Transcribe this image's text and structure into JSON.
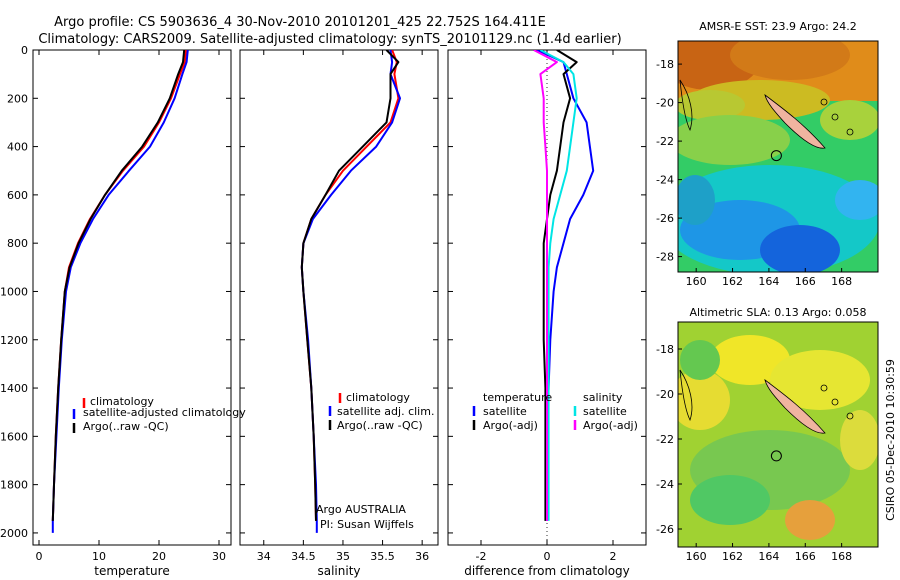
{
  "header": {
    "title_line1": "Argo profile: CS 5903636_4 30-Nov-2010 20101201_425 22.752S 164.411E",
    "title_line2": "Climatology: CARS2009. Satellite-adjusted climatology: synTS_20101129.nc (1.4d earlier)"
  },
  "footer": {
    "stamp": "CSIRO 05-Dec-2010 10:30:59",
    "argo_label": "Argo AUSTRALIA",
    "pi_label": "PI: Susan Wijffels"
  },
  "colors": {
    "climatology": "#ff0000",
    "satellite": "#0000ff",
    "argo": "#000000",
    "sal_satellite": "#00e5e5",
    "sal_argo": "#ff00ff"
  },
  "chart_data": [
    {
      "type": "line",
      "panel": "temperature",
      "xlabel": "temperature",
      "ylabel": "",
      "xlim": [
        -1,
        32
      ],
      "ylim": [
        2050,
        0
      ],
      "xticks": [
        0,
        10,
        20,
        30
      ],
      "yticks": [
        0,
        200,
        400,
        600,
        800,
        1000,
        1200,
        1400,
        1600,
        1800,
        2000
      ],
      "series": [
        {
          "name": "climatology",
          "color": "#ff0000",
          "x": [
            24.5,
            24.3,
            23.5,
            22.0,
            20.0,
            17.5,
            14.0,
            11.0,
            8.5,
            6.5,
            5.0,
            4.3,
            3.7,
            3.2,
            2.8,
            2.5,
            2.3
          ],
          "y": [
            0,
            50,
            100,
            200,
            300,
            400,
            500,
            600,
            700,
            800,
            900,
            1000,
            1200,
            1400,
            1600,
            1800,
            1950
          ]
        },
        {
          "name": "satellite-adjusted climatology",
          "color": "#0000ff",
          "x": [
            24.8,
            24.6,
            23.9,
            22.6,
            20.8,
            18.5,
            15.0,
            11.6,
            9.0,
            6.9,
            5.3,
            4.5,
            3.8,
            3.3,
            2.9,
            2.5,
            2.3,
            2.3
          ],
          "y": [
            0,
            50,
            100,
            200,
            300,
            400,
            500,
            600,
            700,
            800,
            900,
            1000,
            1200,
            1400,
            1600,
            1800,
            1950,
            2000
          ]
        },
        {
          "name": "Argo(..raw -QC)",
          "color": "#000000",
          "x": [
            24.2,
            24.0,
            23.2,
            21.8,
            19.8,
            17.2,
            13.8,
            11.0,
            8.6,
            6.6,
            5.1,
            4.3,
            3.7,
            3.2,
            2.8,
            2.5,
            2.3
          ],
          "y": [
            0,
            50,
            100,
            200,
            300,
            400,
            500,
            600,
            700,
            800,
            900,
            1000,
            1200,
            1400,
            1600,
            1800,
            1950
          ]
        }
      ],
      "legend": [
        "climatology",
        "satellite-adjusted climatology",
        "Argo(..raw -QC)"
      ],
      "legend_position": "center-right"
    },
    {
      "type": "line",
      "panel": "salinity",
      "xlabel": "salinity",
      "ylabel": "",
      "xlim": [
        33.7,
        36.2
      ],
      "ylim": [
        2050,
        0
      ],
      "xticks": [
        34,
        34.5,
        35,
        35.5,
        36
      ],
      "yticks": [
        0,
        200,
        400,
        600,
        800,
        1000,
        1200,
        1400,
        1600,
        1800,
        2000
      ],
      "series": [
        {
          "name": "climatology",
          "color": "#ff0000",
          "x": [
            35.62,
            35.68,
            35.65,
            35.7,
            35.6,
            35.3,
            35.0,
            34.78,
            34.6,
            34.5,
            34.48,
            34.5,
            34.55,
            34.6,
            34.63,
            34.65,
            34.66
          ],
          "y": [
            0,
            50,
            100,
            200,
            300,
            400,
            500,
            600,
            700,
            800,
            900,
            1000,
            1200,
            1400,
            1600,
            1800,
            1950
          ]
        },
        {
          "name": "satellite adj. clim.",
          "color": "#0000ff",
          "x": [
            35.6,
            35.62,
            35.6,
            35.72,
            35.62,
            35.42,
            35.1,
            34.85,
            34.62,
            34.5,
            34.48,
            34.5,
            34.56,
            34.6,
            34.63,
            34.66,
            34.67,
            34.67
          ],
          "y": [
            0,
            50,
            100,
            200,
            300,
            400,
            500,
            600,
            700,
            800,
            900,
            1000,
            1200,
            1400,
            1600,
            1800,
            1950,
            2000
          ]
        },
        {
          "name": "Argo(..raw -QC)",
          "color": "#000000",
          "x": [
            35.55,
            35.7,
            35.6,
            35.6,
            35.55,
            35.25,
            34.95,
            34.78,
            34.6,
            34.5,
            34.48,
            34.5,
            34.55,
            34.6,
            34.63,
            34.65,
            34.66
          ],
          "y": [
            0,
            50,
            100,
            200,
            300,
            400,
            500,
            600,
            700,
            800,
            900,
            1000,
            1200,
            1400,
            1600,
            1800,
            1950
          ]
        }
      ],
      "legend": [
        "climatology",
        "satellite adj. clim.",
        "Argo(..raw -QC)"
      ],
      "legend_position": "center-right"
    },
    {
      "type": "line",
      "panel": "difference",
      "xlabel": "difference from climatology",
      "ylabel": "",
      "xlim": [
        -3,
        3
      ],
      "ylim": [
        2050,
        0
      ],
      "xticks": [
        -2,
        0,
        2
      ],
      "yticks": [
        0,
        200,
        400,
        600,
        800,
        1000,
        1200,
        1400,
        1600,
        1800,
        2000
      ],
      "series": [
        {
          "name": "temperature satellite",
          "color": "#0000ff",
          "x": [
            -0.3,
            0.5,
            0.6,
            0.8,
            1.2,
            1.3,
            1.4,
            1.1,
            0.7,
            0.5,
            0.3,
            0.2,
            0.1,
            0.05,
            0.0,
            0.0,
            0.0
          ],
          "y": [
            0,
            50,
            100,
            200,
            300,
            400,
            500,
            600,
            700,
            800,
            900,
            1000,
            1200,
            1400,
            1600,
            1800,
            1950
          ]
        },
        {
          "name": "temperature Argo(-adj)",
          "color": "#000000",
          "x": [
            0.3,
            0.9,
            0.5,
            0.7,
            0.5,
            0.4,
            0.3,
            0.1,
            0.0,
            -0.1,
            -0.1,
            -0.1,
            -0.1,
            -0.05,
            -0.05,
            -0.05,
            -0.05
          ],
          "y": [
            0,
            50,
            100,
            200,
            300,
            400,
            500,
            600,
            700,
            800,
            900,
            1000,
            1200,
            1400,
            1600,
            1800,
            1950
          ]
        },
        {
          "name": "salinity satellite",
          "color": "#00e5e5",
          "x": [
            -0.2,
            0.5,
            0.8,
            0.9,
            0.8,
            0.7,
            0.6,
            0.4,
            0.2,
            0.1,
            0.05,
            0.05,
            0.05,
            0.05,
            0.05,
            0.05,
            0.05
          ],
          "y": [
            0,
            50,
            100,
            200,
            300,
            400,
            500,
            600,
            700,
            800,
            900,
            1000,
            1200,
            1400,
            1600,
            1800,
            1950
          ]
        },
        {
          "name": "salinity Argo(-adj)",
          "color": "#ff00ff",
          "x": [
            -0.4,
            0.3,
            -0.2,
            -0.1,
            -0.1,
            -0.05,
            0.0,
            0.0,
            0.0,
            0.0,
            0.0,
            0.0,
            0.0,
            0.0,
            0.0,
            0.0,
            0.0
          ],
          "y": [
            0,
            50,
            100,
            200,
            300,
            400,
            500,
            600,
            700,
            800,
            900,
            1000,
            1200,
            1400,
            1600,
            1800,
            1950
          ]
        }
      ],
      "legend_temperature_title": "temperature",
      "legend_salinity_title": "salinity",
      "legend": [
        "satellite",
        "Argo(-adj)",
        "satellite",
        "Argo(-adj)"
      ],
      "legend_position": "center-right"
    },
    {
      "type": "heatmap",
      "panel": "sst_map",
      "title": "AMSR-E SST: 23.9 Argo: 24.2",
      "xlim": [
        159,
        170
      ],
      "ylim": [
        -28.8,
        -16.8
      ],
      "xticks": [
        160,
        162,
        164,
        166,
        168
      ],
      "yticks": [
        -18,
        -20,
        -22,
        -24,
        -26,
        -28
      ],
      "argo_lon": 164.411,
      "argo_lat": -22.752
    },
    {
      "type": "heatmap",
      "panel": "sla_map",
      "title": "Altimetric SLA: 0.13 Argo: 0.058",
      "xlim": [
        159,
        170
      ],
      "ylim": [
        -26.8,
        -16.8
      ],
      "xticks": [
        160,
        162,
        164,
        166,
        168
      ],
      "yticks": [
        -18,
        -20,
        -22,
        -24,
        -26
      ],
      "argo_lon": 164.411,
      "argo_lat": -22.752
    }
  ]
}
